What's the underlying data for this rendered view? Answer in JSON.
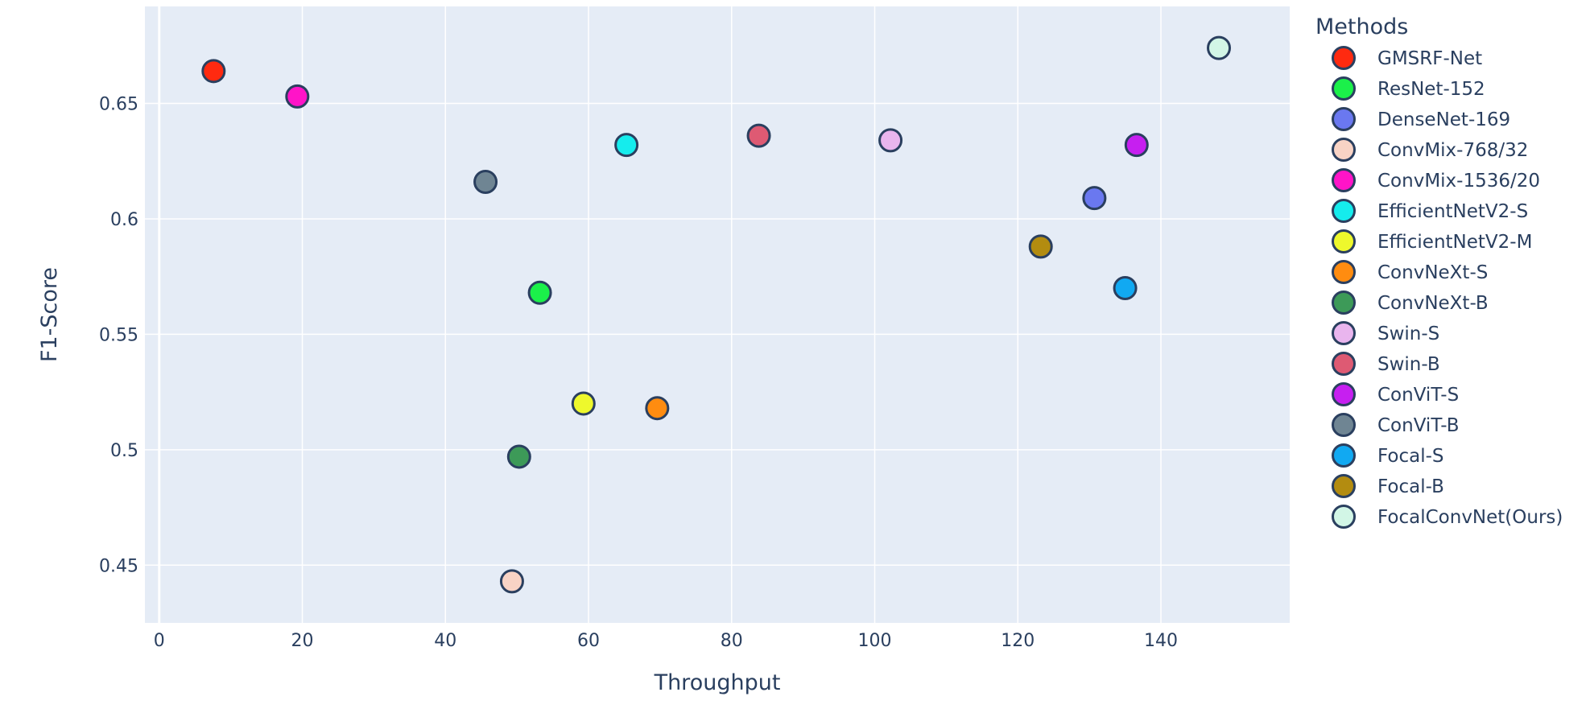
{
  "chart_data": {
    "type": "scatter",
    "title": "",
    "xlabel": "Throughput",
    "ylabel": "F1-Score",
    "xlim": [
      -2,
      158
    ],
    "ylim": [
      0.425,
      0.692
    ],
    "x_ticks": [
      0,
      20,
      40,
      60,
      80,
      100,
      120,
      140
    ],
    "x_tick_labels": [
      "0",
      "20",
      "40",
      "60",
      "80",
      "100",
      "120",
      "140"
    ],
    "y_ticks": [
      0.45,
      0.5,
      0.55,
      0.6,
      0.65
    ],
    "y_tick_labels": [
      "0.45",
      "0.5",
      "0.55",
      "0.6",
      "0.65"
    ],
    "grid": true,
    "background_color": "#e5ecf6",
    "legend": {
      "title": "Methods",
      "placement": "right"
    },
    "series": [
      {
        "name": "GMSRF-Net",
        "x": 7.6,
        "y": 0.664,
        "color": "#ff2a10"
      },
      {
        "name": "ResNet-152",
        "x": 53.2,
        "y": 0.568,
        "color": "#1bf04a"
      },
      {
        "name": "DenseNet-169",
        "x": 130.7,
        "y": 0.609,
        "color": "#6a78f0"
      },
      {
        "name": "ConvMix-768/32",
        "x": 49.3,
        "y": 0.443,
        "color": "#f8d3c5"
      },
      {
        "name": "ConvMix-1536/20",
        "x": 19.3,
        "y": 0.653,
        "color": "#ff14c8"
      },
      {
        "name": "EfficientNetV2-S",
        "x": 65.3,
        "y": 0.632,
        "color": "#15eced"
      },
      {
        "name": "EfficientNetV2-M",
        "x": 59.3,
        "y": 0.52,
        "color": "#eef82c"
      },
      {
        "name": "ConvNeXt-S",
        "x": 69.6,
        "y": 0.518,
        "color": "#ff8c10"
      },
      {
        "name": "ConvNeXt-B",
        "x": 50.3,
        "y": 0.497,
        "color": "#3d9a58"
      },
      {
        "name": "Swin-S",
        "x": 102.2,
        "y": 0.634,
        "color": "#e9b5ee"
      },
      {
        "name": "Swin-B",
        "x": 83.8,
        "y": 0.636,
        "color": "#de5a73"
      },
      {
        "name": "ConViT-S",
        "x": 136.6,
        "y": 0.632,
        "color": "#c61ff0"
      },
      {
        "name": "ConViT-B",
        "x": 45.6,
        "y": 0.616,
        "color": "#6f8593"
      },
      {
        "name": "Focal-S",
        "x": 135.0,
        "y": 0.57,
        "color": "#11a9f2"
      },
      {
        "name": "Focal-B",
        "x": 123.2,
        "y": 0.588,
        "color": "#b38c10"
      },
      {
        "name": "FocalConvNet(Ours)",
        "x": 148.1,
        "y": 0.674,
        "color": "#d2f6e6"
      }
    ]
  }
}
